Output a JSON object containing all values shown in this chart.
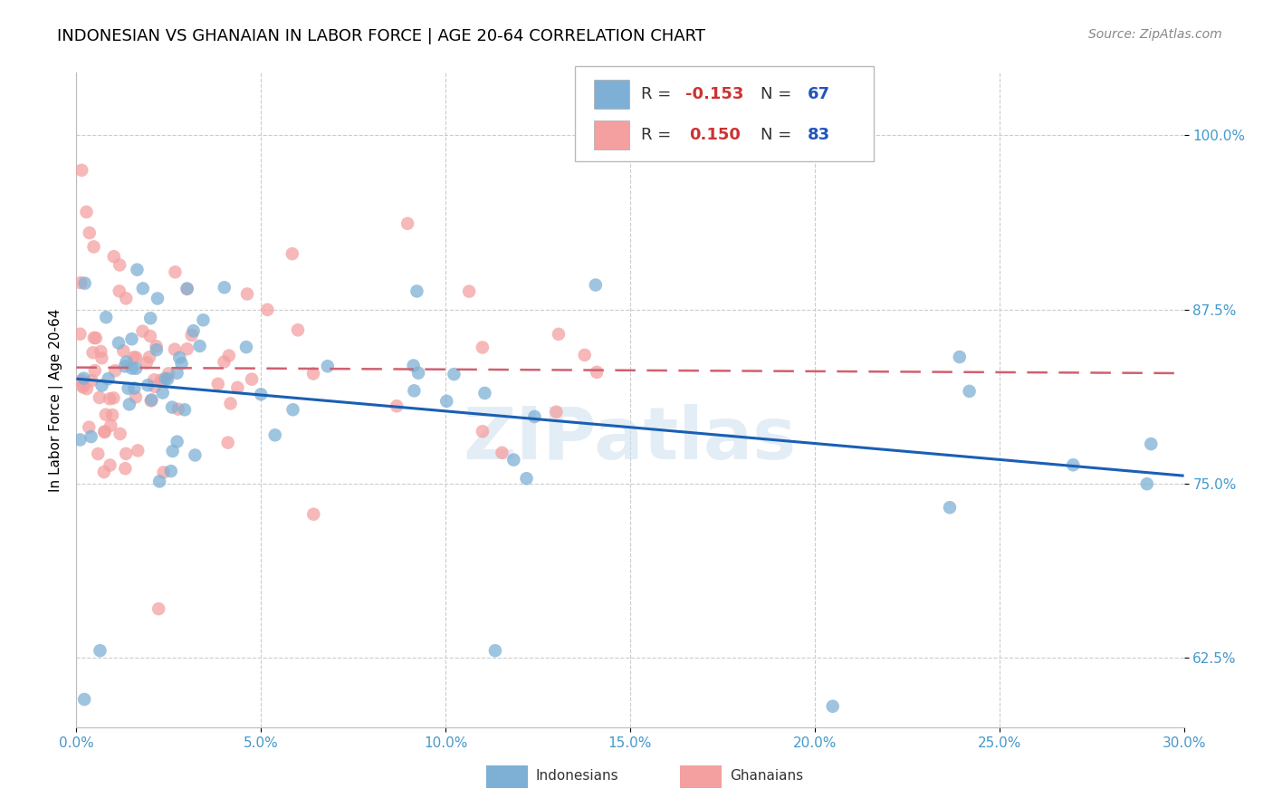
{
  "title": "INDONESIAN VS GHANAIAN IN LABOR FORCE | AGE 20-64 CORRELATION CHART",
  "source": "Source: ZipAtlas.com",
  "ylabel": "In Labor Force | Age 20-64",
  "xlim": [
    0.0,
    0.3
  ],
  "ylim": [
    0.575,
    1.045
  ],
  "yticks": [
    0.625,
    0.75,
    0.875,
    1.0
  ],
  "xticks": [
    0.0,
    0.05,
    0.1,
    0.15,
    0.2,
    0.25,
    0.3
  ],
  "indonesian_color": "#7eb0d5",
  "ghanaian_color": "#f4a0a0",
  "trendline_indonesian_color": "#1a5fb4",
  "trendline_ghanaian_color": "#d06070",
  "R_indonesian": -0.153,
  "R_ghanaian": 0.15,
  "N_indonesian": 67,
  "N_ghanaian": 83,
  "watermark": "ZIPatlas",
  "background_color": "#ffffff",
  "grid_color": "#cccccc",
  "axis_color": "#4499cc",
  "title_fontsize": 13,
  "label_fontsize": 11,
  "tick_fontsize": 11,
  "source_fontsize": 10
}
